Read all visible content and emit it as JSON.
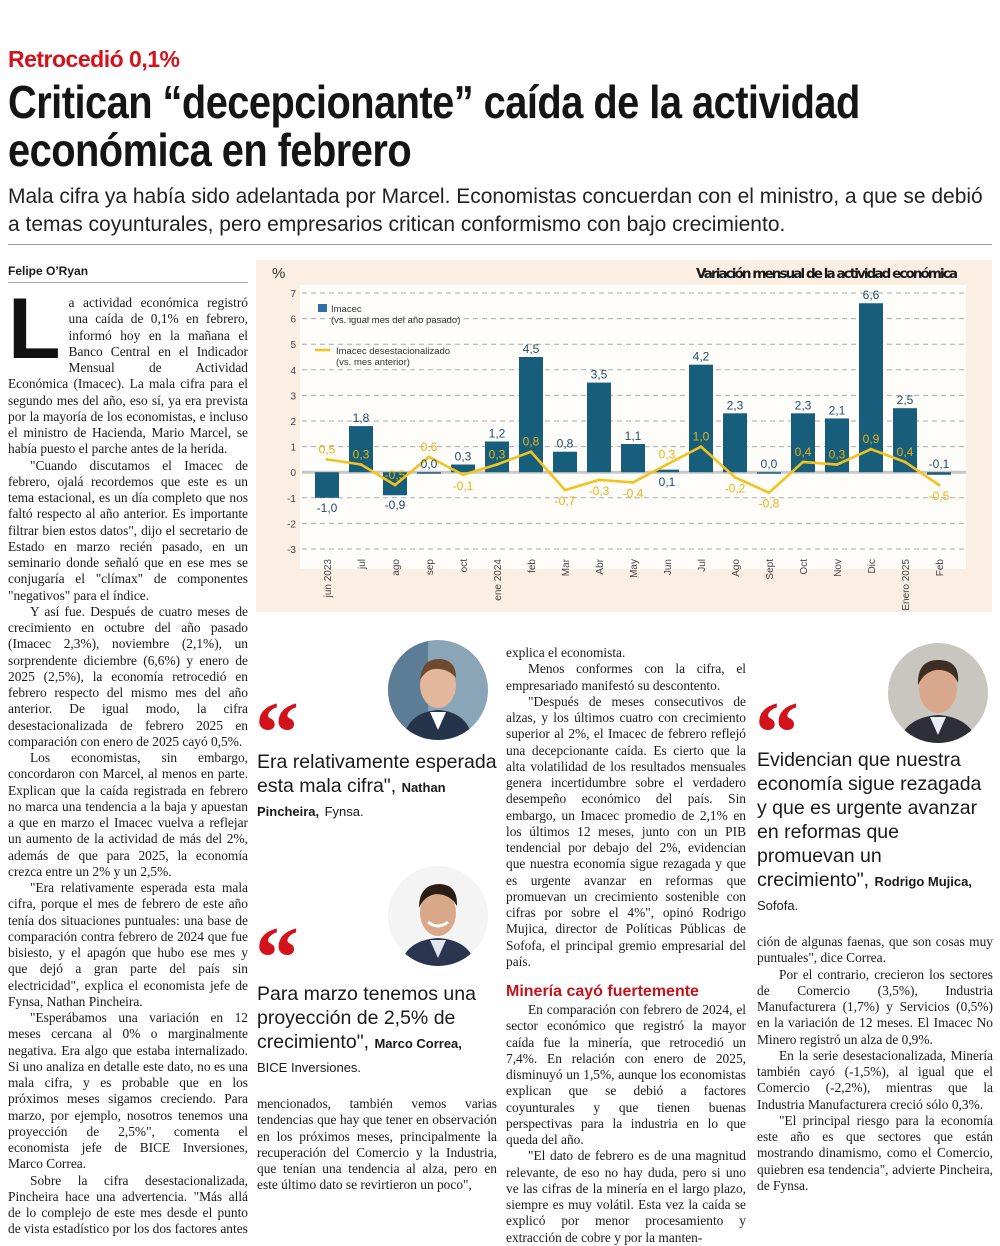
{
  "kicker": "Retrocedió 0,1%",
  "headline": [
    "Critican “decepcionante” caída de la actividad",
    "económica en febrero"
  ],
  "deck": "Mala cifra ya había sido adelantada por Marcel. Economistas concuerdan con el ministro, a que se debió a temas coyunturales, pero empresarios critican conformismo con bajo crecimiento.",
  "byline": "Felipe O’Ryan",
  "body": {
    "dropcap": "L",
    "col1": [
      "a actividad económica registró una caída de 0,1% en febrero, informó hoy en la mañana el Banco Central en el Indicador Mensual de Actividad Económica (Imacec). La mala cifra para el segundo mes del año, eso sí, ya era prevista por la mayoría de los economistas, e incluso el ministro de Hacienda, Mario Marcel, se había puesto el parche antes de la herida.",
      "\"Cuando discutamos el Imacec de febrero, ojalá recordemos que este es un tema estacional, es un día completo que nos faltó respecto al año anterior. Es importante filtrar bien estos datos\", dijo el secretario de Estado en marzo recién pasado, en un seminario donde señaló que en ese mes se conjugaría el \"clímax\" de componentes \"negativos\" para el índice.",
      "Y así fue. Después de cuatro meses de crecimiento en octubre del año pasado (Imacec 2,3%), noviembre (2,1%), un sorprendente diciembre (6,6%) y enero de 2025 (2,5%), la economía retrocedió en febrero respecto del mismo mes del año anterior. De igual modo, la cifra desestacionalizada de febrero 2025 en comparación con enero de 2025 cayó 0,5%.",
      "Los economistas, sin embargo, concordaron con Marcel, al menos en parte. Explican que la caída registrada en febrero no marca una tendencia a la baja y apuestan a que en marzo el Imacec vuelva a reflejar un aumento de la actividad de más del 2%, además de que para 2025, la economía crezca entre un 2% y un 2,5%.",
      "\"Era relativamente esperada esta mala cifra, porque el mes de febrero de este año tenía dos situaciones puntuales: una base de comparación contra febrero de 2024 que fue bisiesto, y el apagón que hubo ese mes y que dejó a gran parte del país sin electricidad\", explica el economista jefe de Fynsa, Nathan Pincheira.",
      "\"Esperábamos una variación en 12 meses cercana al 0% o marginalmente negativa. Era algo que estaba internalizado. Si uno analiza en detalle este dato, no es una mala cifra, y es probable que en los próximos meses sigamos creciendo. Para marzo, por ejemplo, nosotros tenemos una proyección de 2,5%\", comenta el economista jefe de BICE Inversiones, Marco Correa.",
      "Sobre la cifra desestacionalizada, Pincheira hace una advertencia. \"Más allá de lo complejo de este mes desde el punto de vista estadístico por los dos factores antes"
    ],
    "col2": [
      "mencionados, también vemos varias tendencias que hay que tener en observación en los próximos meses, principalmente la recuperación del Comercio y la Industria, que tenían una tendencia al alza, pero en este último dato se revirtieron un poco\","
    ],
    "col3": [
      "explica el economista.",
      "Menos conformes con la cifra, el empresariado manifestó su descontento.",
      "\"Después de meses consecutivos de alzas, y los últimos cuatro con crecimiento superior al 2%, el Imacec de febrero reflejó una decepcionante caída. Es cierto que la alta volatilidad de los resultados mensuales genera incertidumbre sobre el verdadero desempeño económico del país. Sin embargo, un Imacec promedio de 2,1% en los últimos 12 meses, junto con un PIB tendencial por debajo del 2%, evidencian que nuestra economía sigue rezagada y que es urgente avanzar en reformas que promuevan un crecimiento sostenible con cifras por sobre el 4%\", opinó Rodrigo Mujica, director de Políticas Públicas de Sofofa, el principal gremio empresarial del país."
    ],
    "subhead": "Minería cayó fuertemente",
    "col3b": [
      "En comparación con febrero de 2024, el sector económico que registró la mayor caída fue la minería, que retrocedió un 7,4%. En relación con enero de 2025, disminuyó un 1,5%, aunque los economistas explican que se debió a factores coyunturales y que tienen buenas perspectivas para la industria en lo que queda del año.",
      "\"El dato de febrero es de una magnitud relevante, de eso no hay duda, pero si uno ve las cifras de la minería en el largo plazo, siempre es muy volátil. Esta vez la caída se explicó por menor procesamiento y extracción de cobre y por la manten-"
    ],
    "col4": [
      "ción de algunas faenas, que son cosas muy puntuales\", dice Correa.",
      "Por el contrario, crecieron los sectores de Comercio (3,5%), Industria Manufacturera (1,7%) y Servicios (0,5%) en la variación de 12 meses. El Imacec No Minero registró un alza de 0,9%.",
      "En la serie desestacionalizada, Minería también cayó (-1,5%), al igual que el Comercio (-2,2%), mientras que la Industria Manufacturera creció sólo 0,3%.",
      "\"El principal riesgo para la economía este año es que sectores que están mostrando dinamismo, como el Comercio, quiebren esa tendencia\", advierte Pincheira, de Fynsa."
    ]
  },
  "quotes": [
    {
      "mark": "“",
      "text": "Era relativamente esperada esta mala cifra\",",
      "name": "Nathan Pincheira,",
      "org": "Fynsa."
    },
    {
      "mark": "“",
      "text": "Para marzo tenemos una proyección de 2,5% de crecimiento\",",
      "name": "Marco Correa,",
      "org": "BICE Inversiones."
    },
    {
      "mark": "“",
      "text": "Evidencian que nuestra economía sigue rezagada y que es urgente avanzar en reformas que promuevan un crecimiento\",",
      "name": "Rodrigo Mujica,",
      "org": "Sofofa."
    }
  ],
  "colors": {
    "accent": "#d3121c",
    "bar": "#175d7c",
    "line": "#f1c31c",
    "panel": "#fbefe3"
  },
  "chart_data": {
    "type": "bar",
    "title": "Variación mensual de la actividad económica",
    "ylabel": "%",
    "ylim": [
      -3,
      7
    ],
    "yticks": [
      "7",
      "6",
      "5",
      "4",
      "3",
      "2",
      "1",
      "0",
      "-1",
      "-2",
      "-3"
    ],
    "grid": true,
    "legend_placement": "top-left",
    "categories": [
      "jun 2023",
      "jul",
      "ago",
      "sep",
      "oct",
      "ene 2024",
      "feb",
      "Mar",
      "Abr",
      "May",
      "Jun",
      "Jul",
      "Ago",
      "Sept",
      "Oct",
      "Nov",
      "Dic",
      "Enero 2025",
      "Feb"
    ],
    "series": [
      {
        "name": "Imacec",
        "note": "(vs. igual mes del año pasado)",
        "type": "bar",
        "values": [
          -1.0,
          1.8,
          -0.9,
          0.0,
          0.3,
          1.2,
          4.5,
          0.8,
          3.5,
          1.1,
          0.1,
          4.2,
          2.3,
          0.0,
          2.3,
          2.1,
          6.6,
          2.5,
          -0.1
        ],
        "labels": [
          "-1,0",
          "1,8",
          "-0,9",
          "0,0",
          "0,3",
          "1,2",
          "4,5",
          "0,8",
          "3,5",
          "1,1",
          "0,1",
          "4,2",
          "2,3",
          "0,0",
          "2,3",
          "2,1",
          "6,6",
          "2,5",
          "-0,1"
        ]
      },
      {
        "name": "Imacec desestacionalizado",
        "note": "(vs. mes anterior)",
        "type": "line",
        "values": [
          0.5,
          0.3,
          -0.5,
          0.6,
          -0.1,
          0.3,
          0.8,
          -0.7,
          -0.3,
          -0.4,
          0.3,
          1.0,
          -0.2,
          -0.8,
          0.4,
          0.3,
          0.9,
          0.4,
          -0.5
        ],
        "labels": [
          "0,5",
          "0,3",
          "-0,5",
          "0,6",
          "-0,1",
          "0,3",
          "0,8",
          "-0,7",
          "-0,3",
          "-0,4",
          "0,3",
          "1,0",
          "-0,2",
          "-0,8",
          "0,4",
          "0,3",
          "0,9",
          "0,4",
          "-0,5"
        ]
      }
    ]
  }
}
